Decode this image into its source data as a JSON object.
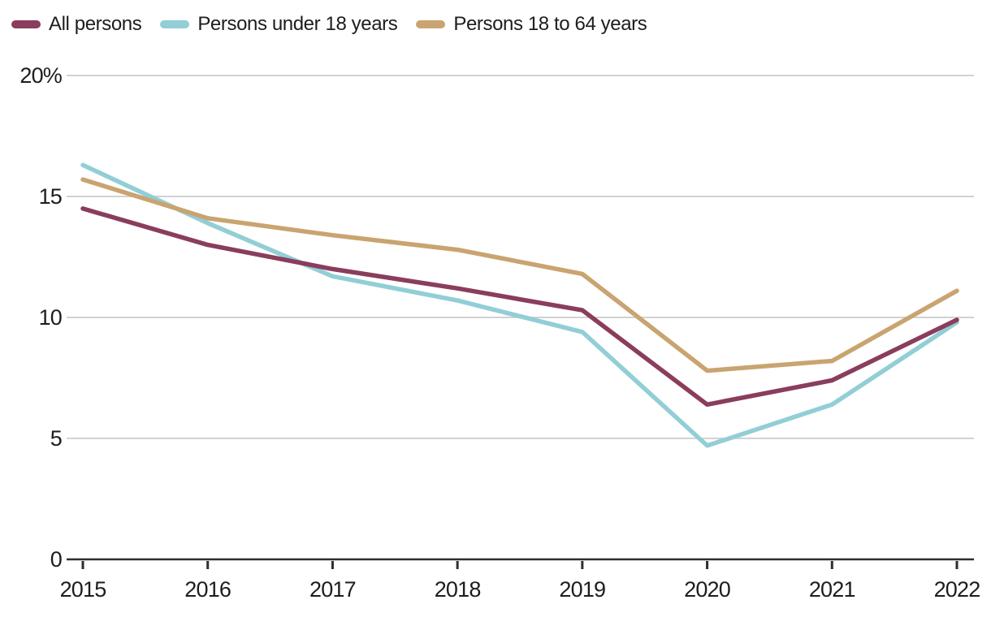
{
  "chart_data": {
    "type": "line",
    "categories": [
      "2015",
      "2016",
      "2017",
      "2018",
      "2019",
      "2020",
      "2021",
      "2022"
    ],
    "series": [
      {
        "name": "All persons",
        "color": "#8a3d5c",
        "values": [
          14.5,
          13.0,
          12.0,
          11.2,
          10.3,
          6.4,
          7.4,
          9.9
        ]
      },
      {
        "name": "Persons under 18 years",
        "color": "#92ced6",
        "values": [
          16.3,
          13.9,
          11.7,
          10.7,
          9.4,
          4.7,
          6.4,
          9.8
        ]
      },
      {
        "name": "Persons 18 to 64 years",
        "color": "#c9a470",
        "values": [
          15.7,
          14.1,
          13.4,
          12.8,
          11.8,
          7.8,
          8.2,
          11.1
        ]
      }
    ],
    "yticks": [
      {
        "value": 20,
        "label": "20%"
      },
      {
        "value": 15,
        "label": "15"
      },
      {
        "value": 10,
        "label": "10"
      },
      {
        "value": 5,
        "label": "5"
      },
      {
        "value": 0,
        "label": "0"
      }
    ],
    "ylim": [
      0,
      20
    ],
    "unit": "%",
    "title": "",
    "xlabel": "",
    "ylabel": "",
    "grid": "horizontal",
    "legend_position": "top-left"
  },
  "colors": {
    "gridline": "#d2d2d2",
    "axis": "#2e2e2e",
    "text": "#1d1d1d",
    "background": "#ffffff"
  }
}
